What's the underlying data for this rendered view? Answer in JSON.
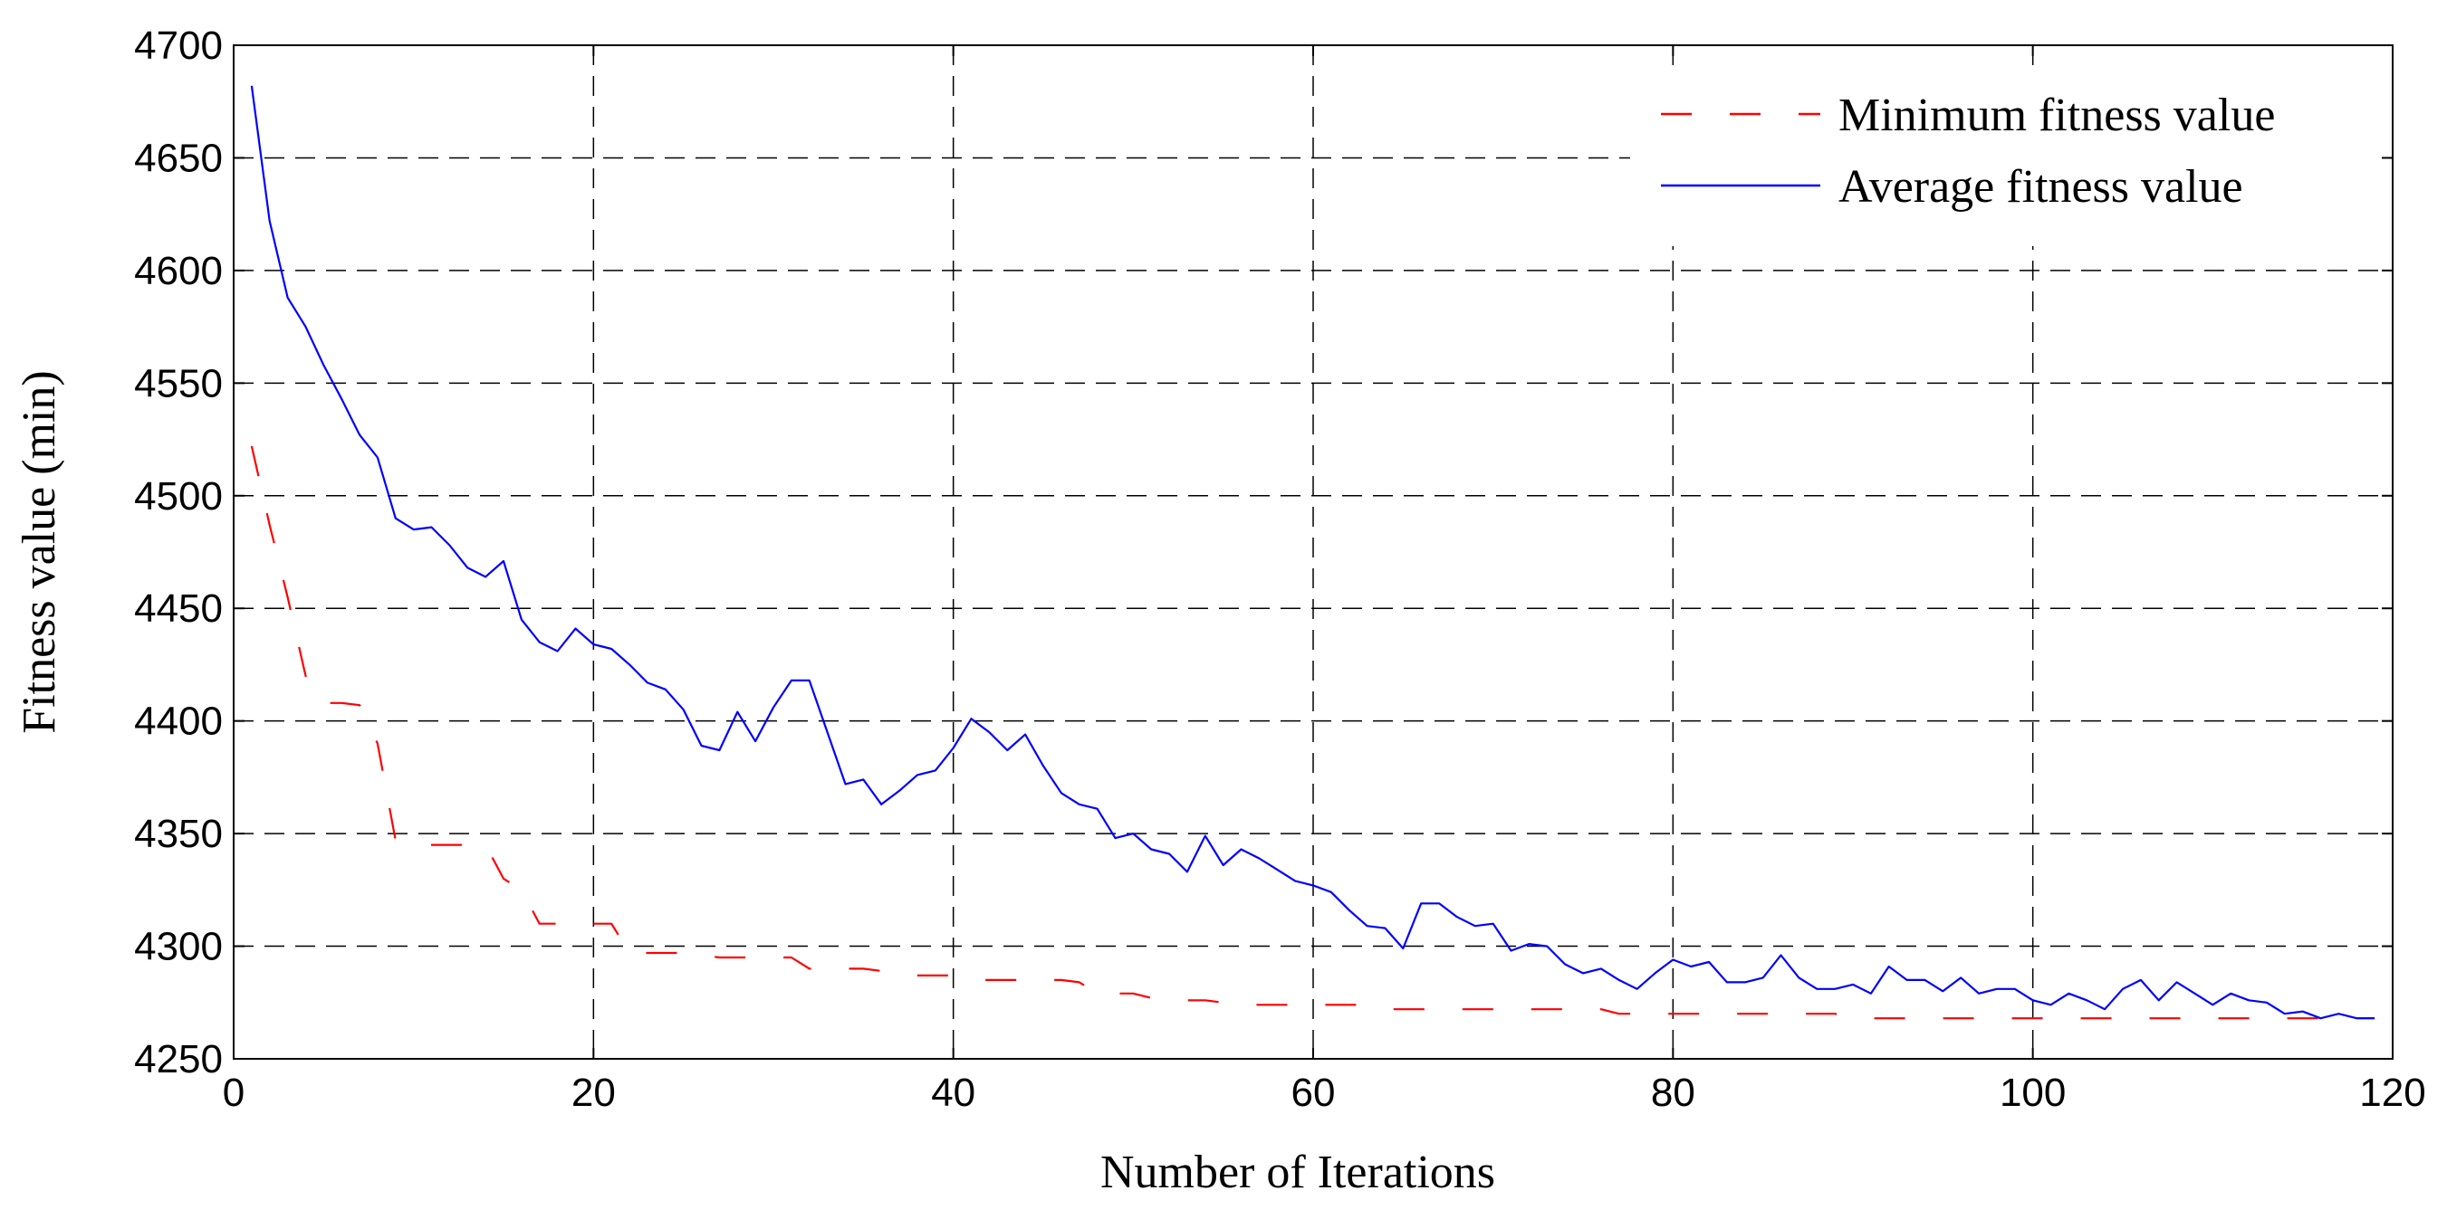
{
  "chart_data": {
    "type": "line",
    "title": "",
    "xlabel": "Number of Iterations",
    "ylabel": "Fitness value (min)",
    "xlim": [
      0,
      120
    ],
    "ylim": [
      4250,
      4700
    ],
    "xticks": [
      0,
      20,
      40,
      60,
      80,
      100,
      120
    ],
    "yticks": [
      4250,
      4300,
      4350,
      4400,
      4450,
      4500,
      4550,
      4600,
      4650,
      4700
    ],
    "grid": true,
    "legend_position": "top-right",
    "series": [
      {
        "name": "Minimum fitness value",
        "color": "#ff0000",
        "style": "dashed",
        "x": [
          1,
          2,
          3,
          4,
          5,
          6,
          7,
          8,
          9,
          10,
          11,
          12,
          13,
          14,
          15,
          16,
          17,
          18,
          19,
          20,
          21,
          22,
          23,
          24,
          25,
          26,
          27,
          28,
          29,
          30,
          31,
          32,
          33,
          34,
          35,
          36,
          37,
          38,
          39,
          40,
          41,
          42,
          43,
          44,
          45,
          46,
          47,
          48,
          49,
          50,
          51,
          52,
          53,
          54,
          55,
          56,
          57,
          58,
          59,
          60,
          61,
          62,
          63,
          64,
          65,
          66,
          67,
          68,
          69,
          70,
          71,
          72,
          73,
          74,
          75,
          76,
          77,
          78,
          79,
          80,
          81,
          82,
          83,
          84,
          85,
          86,
          87,
          88,
          89,
          90,
          91,
          92,
          93,
          94,
          95,
          96,
          97,
          98,
          99,
          100,
          101,
          102,
          103,
          104,
          105,
          106,
          107,
          108,
          109,
          110,
          111,
          112,
          113,
          114,
          115,
          116,
          117,
          118,
          119
        ],
        "values": [
          4522,
          4487,
          4455,
          4420,
          4408,
          4408,
          4407,
          4390,
          4347,
          4347,
          4345,
          4345,
          4345,
          4345,
          4330,
          4325,
          4310,
          4310,
          4310,
          4310,
          4310,
          4297,
          4297,
          4297,
          4297,
          4296,
          4295,
          4295,
          4295,
          4295,
          4295,
          4290,
          4290,
          4290,
          4290,
          4289,
          4287,
          4287,
          4287,
          4287,
          4285,
          4285,
          4285,
          4285,
          4285,
          4285,
          4284,
          4279,
          4279,
          4279,
          4277,
          4276,
          4276,
          4276,
          4275,
          4274,
          4274,
          4274,
          4274,
          4274,
          4274,
          4274,
          4274,
          4272,
          4272,
          4272,
          4272,
          4272,
          4272,
          4272,
          4272,
          4272,
          4272,
          4272,
          4272,
          4272,
          4270,
          4270,
          4270,
          4270,
          4270,
          4270,
          4270,
          4270,
          4270,
          4270,
          4270,
          4270,
          4270,
          4268,
          4268,
          4268,
          4268,
          4268,
          4268,
          4268,
          4268,
          4268,
          4268,
          4268,
          4268,
          4268,
          4268,
          4268,
          4268,
          4268,
          4268,
          4268,
          4268,
          4268,
          4268,
          4268,
          4268,
          4268,
          4268,
          4268,
          4268,
          4268,
          4268
        ]
      },
      {
        "name": "Average fitness value",
        "color": "#0000ff",
        "style": "solid",
        "x": [
          1,
          2,
          3,
          4,
          5,
          6,
          7,
          8,
          9,
          10,
          11,
          12,
          13,
          14,
          15,
          16,
          17,
          18,
          19,
          20,
          21,
          22,
          23,
          24,
          25,
          26,
          27,
          28,
          29,
          30,
          31,
          32,
          33,
          34,
          35,
          36,
          37,
          38,
          39,
          40,
          41,
          42,
          43,
          44,
          45,
          46,
          47,
          48,
          49,
          50,
          51,
          52,
          53,
          54,
          55,
          56,
          57,
          58,
          59,
          60,
          61,
          62,
          63,
          64,
          65,
          66,
          67,
          68,
          69,
          70,
          71,
          72,
          73,
          74,
          75,
          76,
          77,
          78,
          79,
          80,
          81,
          82,
          83,
          84,
          85,
          86,
          87,
          88,
          89,
          90,
          91,
          92,
          93,
          94,
          95,
          96,
          97,
          98,
          99,
          100,
          101,
          102,
          103,
          104,
          105,
          106,
          107,
          108,
          109,
          110,
          111,
          112,
          113,
          114,
          115,
          116,
          117,
          118,
          119
        ],
        "values": [
          4682,
          4622,
          4588,
          4575,
          4558,
          4543,
          4527,
          4517,
          4490,
          4485,
          4486,
          4478,
          4468,
          4464,
          4471,
          4445,
          4435,
          4431,
          4441,
          4434,
          4432,
          4425,
          4417,
          4414,
          4405,
          4389,
          4387,
          4404,
          4391,
          4406,
          4418,
          4418,
          4395,
          4372,
          4374,
          4363,
          4369,
          4376,
          4378,
          4388,
          4401,
          4395,
          4387,
          4394,
          4380,
          4368,
          4363,
          4361,
          4348,
          4350,
          4343,
          4341,
          4333,
          4349,
          4336,
          4343,
          4339,
          4334,
          4329,
          4327,
          4324,
          4316,
          4309,
          4308,
          4299,
          4319,
          4319,
          4313,
          4309,
          4310,
          4298,
          4301,
          4300,
          4292,
          4288,
          4290,
          4285,
          4281,
          4288,
          4294,
          4291,
          4293,
          4284,
          4284,
          4286,
          4296,
          4286,
          4281,
          4281,
          4283,
          4279,
          4291,
          4285,
          4285,
          4280,
          4286,
          4279,
          4281,
          4281,
          4276,
          4274,
          4279,
          4276,
          4272,
          4281,
          4285,
          4276,
          4284,
          4279,
          4274,
          4279,
          4276,
          4275,
          4270,
          4271,
          4268,
          4270,
          4268,
          4268
        ]
      }
    ]
  }
}
